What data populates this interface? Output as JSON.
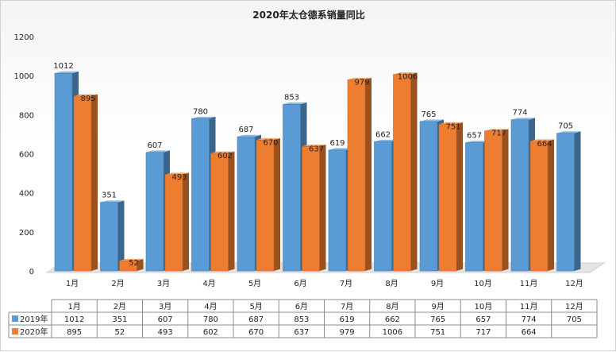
{
  "chart_data": {
    "type": "bar",
    "title": "2020年太仓德系销量同比",
    "categories": [
      "1月",
      "2月",
      "3月",
      "4月",
      "5月",
      "6月",
      "7月",
      "8月",
      "9月",
      "10月",
      "11月",
      "12月"
    ],
    "series": [
      {
        "name": "2019年",
        "color": "#5b9bd5",
        "values": [
          1012,
          351,
          607,
          780,
          687,
          853,
          619,
          662,
          765,
          657,
          774,
          705
        ]
      },
      {
        "name": "2020年",
        "color": "#ed7d31",
        "values": [
          895,
          52,
          493,
          602,
          670,
          637,
          979,
          1006,
          751,
          717,
          664,
          null
        ]
      }
    ],
    "yticks": [
      0,
      200,
      400,
      600,
      800,
      1000,
      1200
    ],
    "ylim": [
      0,
      1200
    ],
    "grid": false,
    "legend": "data-table",
    "view": "3d"
  }
}
